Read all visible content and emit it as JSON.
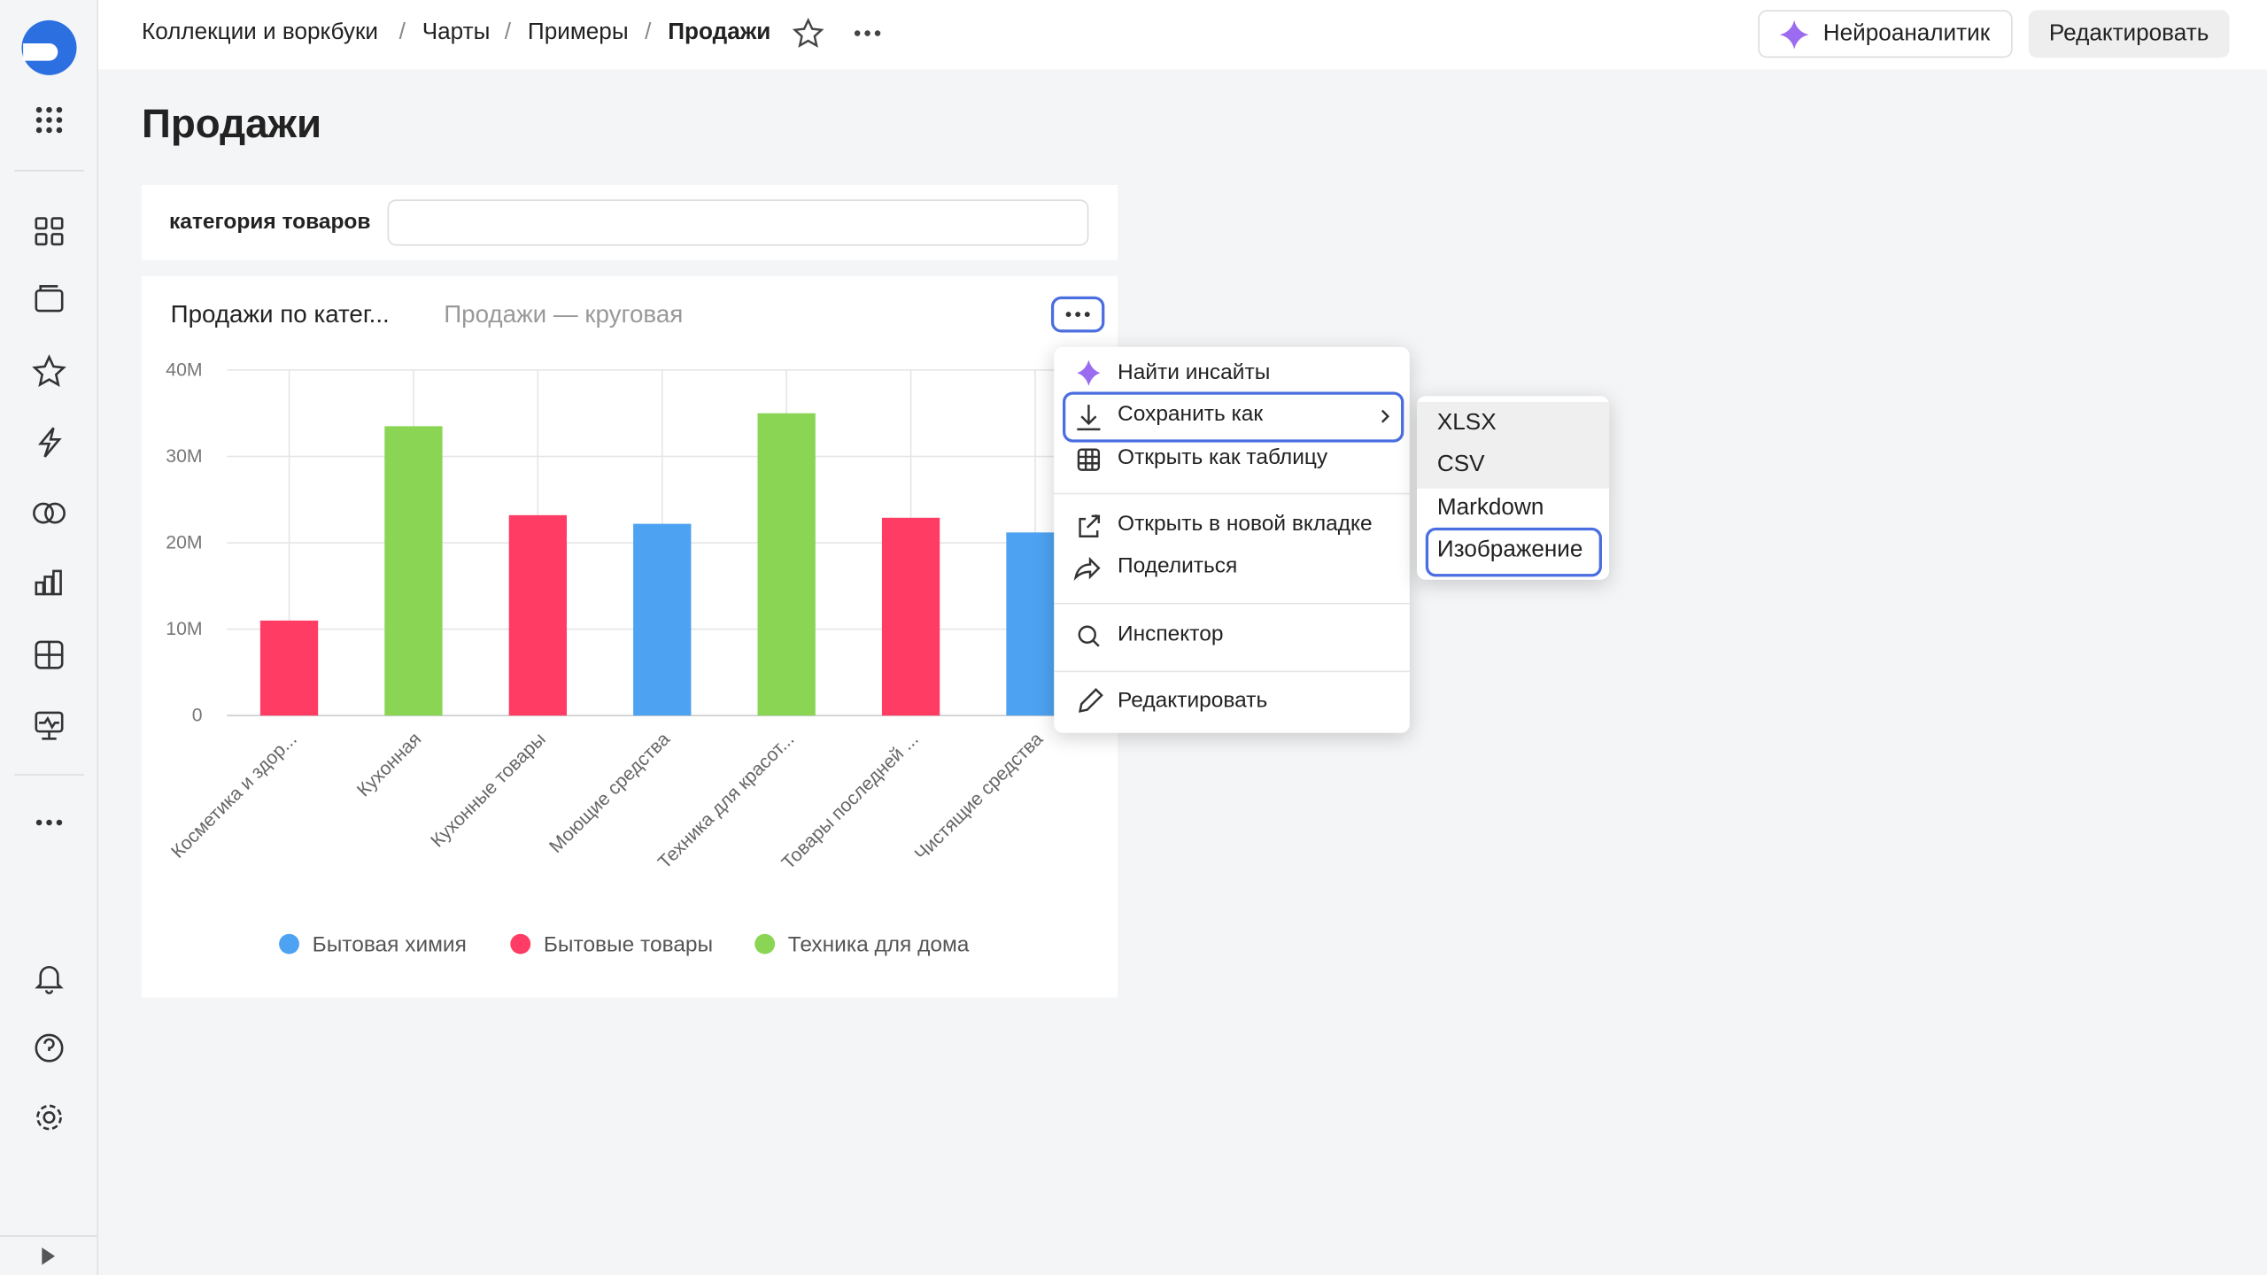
{
  "breadcrumbs": [
    "Коллекции и воркбуки",
    "Чарты",
    "Примеры",
    "Продажи"
  ],
  "header_buttons": {
    "ai": "Нейроаналитик",
    "edit": "Редактировать"
  },
  "page_title": "Продажи",
  "filter": {
    "label": "категория товаров"
  },
  "widget": {
    "tabs": [
      "Продажи по катег...",
      "Продажи — круговая"
    ]
  },
  "chart_data": {
    "type": "bar",
    "categories": [
      "Косметика и здор...",
      "Кухонная",
      "Кухонные товары",
      "Моющие средства",
      "Техника для красот...",
      "Товары последней ...",
      "Чистящие средства"
    ],
    "series": [
      {
        "name": "Бытовая химия",
        "color": "#4da2f1",
        "values": [
          null,
          null,
          null,
          22200000,
          null,
          null,
          21200000
        ]
      },
      {
        "name": "Бытовые товары",
        "color": "#ff3d64",
        "values": [
          11000000,
          null,
          23200000,
          null,
          null,
          22900000,
          null
        ]
      },
      {
        "name": "Техника для дома",
        "color": "#8ad554",
        "values": [
          null,
          33500000,
          null,
          null,
          35000000,
          null,
          null
        ]
      }
    ],
    "ylim": [
      0,
      40000000
    ],
    "yticks": [
      0,
      {
        "value": 10000000,
        "label": "10M"
      },
      {
        "value": 20000000,
        "label": "20M"
      },
      {
        "value": 30000000,
        "label": "30M"
      },
      {
        "value": 40000000,
        "label": "40M"
      }
    ],
    "grid": true,
    "legend": "bottom"
  },
  "menu": {
    "items": [
      "Найти инсайты",
      "Сохранить как",
      "Открыть как таблицу",
      "Открыть в новой вкладке",
      "Поделиться",
      "Инспектор",
      "Редактировать"
    ]
  },
  "submenu": {
    "items": [
      "XLSX",
      "CSV",
      "Markdown",
      "Изображение"
    ]
  }
}
